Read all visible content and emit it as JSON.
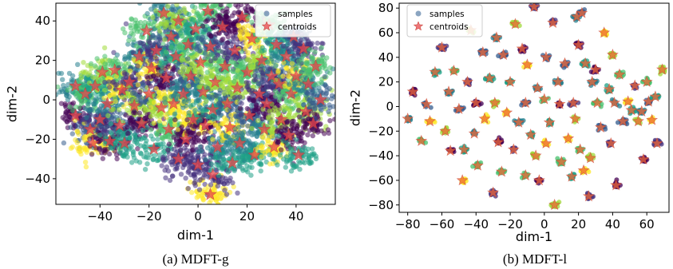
{
  "chart_data": [
    {
      "type": "scatter",
      "caption": "(a) MDFT-g",
      "xlabel": "dim-1",
      "ylabel": "dim-2",
      "xlim": [
        -58,
        56
      ],
      "ylim": [
        -53,
        49
      ],
      "xticks": [
        -40,
        -20,
        0,
        20,
        40
      ],
      "yticks": [
        -40,
        -20,
        0,
        20,
        40
      ],
      "grid": false,
      "legend_position": "top-right",
      "legend": [
        "samples",
        "centroids"
      ],
      "series": [
        {
          "name": "samples",
          "marker": "circle",
          "note": "dense t-SNE point cloud colored by cluster (viridis); clusters surround each centroid",
          "colormap": [
            "#440154",
            "#3b528b",
            "#21918c",
            "#5ec962",
            "#fde725"
          ]
        },
        {
          "name": "centroids",
          "marker": "star",
          "color": "#e8474c",
          "points": [
            [
              -50,
              7
            ],
            [
              -50,
              -8
            ],
            [
              -46,
              3
            ],
            [
              -44,
              -15
            ],
            [
              -43,
              -22
            ],
            [
              -42,
              7
            ],
            [
              -40,
              -10
            ],
            [
              -39,
              14
            ],
            [
              -37,
              -2
            ],
            [
              -36,
              -21
            ],
            [
              -34,
              15
            ],
            [
              -32,
              -13
            ],
            [
              -31,
              5
            ],
            [
              -30,
              -22
            ],
            [
              -28,
              9
            ],
            [
              -26,
              -3
            ],
            [
              -24,
              22
            ],
            [
              -23,
              -12
            ],
            [
              -21,
              35
            ],
            [
              -20,
              3
            ],
            [
              -19,
              16
            ],
            [
              -18,
              -25
            ],
            [
              -17,
              25
            ],
            [
              -15,
              -4
            ],
            [
              -14,
              44
            ],
            [
              -13,
              11
            ],
            [
              -12,
              -15
            ],
            [
              -11,
              32
            ],
            [
              -10,
              -2
            ],
            [
              -9,
              22
            ],
            [
              -8,
              -30
            ],
            [
              -8,
              40
            ],
            [
              -6,
              3
            ],
            [
              -5,
              -20
            ],
            [
              -4,
              28
            ],
            [
              -3,
              12
            ],
            [
              -2,
              -10
            ],
            [
              -1,
              36
            ],
            [
              0,
              -33
            ],
            [
              1,
              19
            ],
            [
              2,
              4
            ],
            [
              3,
              -13
            ],
            [
              4,
              45
            ],
            [
              5,
              27
            ],
            [
              5,
              -48
            ],
            [
              6,
              -5
            ],
            [
              6,
              -38
            ],
            [
              7,
              9
            ],
            [
              8,
              -24
            ],
            [
              10,
              37
            ],
            [
              11,
              17
            ],
            [
              12,
              -2
            ],
            [
              13,
              -14
            ],
            [
              14,
              -32
            ],
            [
              15,
              25
            ],
            [
              16,
              6
            ],
            [
              17,
              -22
            ],
            [
              18,
              42
            ],
            [
              20,
              14
            ],
            [
              21,
              -8
            ],
            [
              22,
              31
            ],
            [
              23,
              -28
            ],
            [
              25,
              3
            ],
            [
              26,
              20
            ],
            [
              27,
              -15
            ],
            [
              28,
              -2
            ],
            [
              29,
              38
            ],
            [
              30,
              12
            ],
            [
              31,
              -24
            ],
            [
              32,
              28
            ],
            [
              33,
              8
            ],
            [
              34,
              -10
            ],
            [
              36,
              22
            ],
            [
              37,
              -18
            ],
            [
              38,
              3
            ],
            [
              39,
              32
            ],
            [
              40,
              12
            ],
            [
              41,
              -28
            ],
            [
              43,
              26
            ],
            [
              44,
              -6
            ],
            [
              45,
              8
            ],
            [
              47,
              -12
            ],
            [
              48,
              17
            ],
            [
              50,
              0
            ]
          ]
        }
      ]
    },
    {
      "type": "scatter",
      "caption": "(b) MDFT-l",
      "xlabel": "dim-1",
      "ylabel": "dim-2",
      "xlim": [
        -85,
        73
      ],
      "ylim": [
        -86,
        84
      ],
      "xticks": [
        -80,
        -60,
        -40,
        -20,
        0,
        20,
        40,
        60
      ],
      "yticks": [
        -80,
        -60,
        -40,
        -20,
        0,
        20,
        40,
        60,
        80
      ],
      "grid": false,
      "legend_position": "top-left",
      "legend": [
        "samples",
        "centroids"
      ],
      "series": [
        {
          "name": "samples",
          "marker": "circle",
          "note": "tight small clusters colored by cluster (viridis), one per centroid",
          "colormap": [
            "#440154",
            "#3b528b",
            "#21918c",
            "#5ec962",
            "#fde725"
          ]
        },
        {
          "name": "centroids",
          "marker": "star",
          "color": "#e8474c",
          "points": [
            [
              -80,
              -10
            ],
            [
              -77,
              12
            ],
            [
              -72,
              -28
            ],
            [
              -69,
              2
            ],
            [
              -67,
              -12
            ],
            [
              -64,
              28
            ],
            [
              -60,
              48
            ],
            [
              -58,
              -20
            ],
            [
              -56,
              12
            ],
            [
              -55,
              -36
            ],
            [
              -53,
              29
            ],
            [
              -50,
              -2
            ],
            [
              -48,
              -60
            ],
            [
              -47,
              -35
            ],
            [
              -45,
              20
            ],
            [
              -43,
              62
            ],
            [
              -41,
              -22
            ],
            [
              -40,
              3
            ],
            [
              -39,
              -48
            ],
            [
              -36,
              44
            ],
            [
              -35,
              -10
            ],
            [
              -32,
              23
            ],
            [
              -30,
              -70
            ],
            [
              -29,
              3
            ],
            [
              -28,
              56
            ],
            [
              -27,
              -29
            ],
            [
              -25,
              -53
            ],
            [
              -24,
              42
            ],
            [
              -22,
              -5
            ],
            [
              -20,
              20
            ],
            [
              -18,
              -35
            ],
            [
              -17,
              67
            ],
            [
              -15,
              -13
            ],
            [
              -13,
              47
            ],
            [
              -11,
              -56
            ],
            [
              -11,
              3
            ],
            [
              -10,
              34
            ],
            [
              -8,
              -23
            ],
            [
              -6,
              81
            ],
            [
              -5,
              -40
            ],
            [
              -4,
              15
            ],
            [
              -3,
              -60
            ],
            [
              0,
              6
            ],
            [
              1,
              40
            ],
            [
              1,
              -30
            ],
            [
              3,
              -13
            ],
            [
              5,
              68
            ],
            [
              6,
              -80
            ],
            [
              8,
              20
            ],
            [
              9,
              2
            ],
            [
              10,
              -45
            ],
            [
              12,
              35
            ],
            [
              14,
              -26
            ],
            [
              16,
              -57
            ],
            [
              17,
              3
            ],
            [
              18,
              -10
            ],
            [
              19,
              73
            ],
            [
              20,
              50
            ],
            [
              21,
              -35
            ],
            [
              22,
              76
            ],
            [
              23,
              -52
            ],
            [
              24,
              35
            ],
            [
              26,
              -73
            ],
            [
              27,
              -42
            ],
            [
              28,
              20
            ],
            [
              30,
              30
            ],
            [
              31,
              3
            ],
            [
              33,
              -17
            ],
            [
              35,
              60
            ],
            [
              38,
              14
            ],
            [
              39,
              -30
            ],
            [
              40,
              42
            ],
            [
              41,
              3
            ],
            [
              42,
              -64
            ],
            [
              44,
              26
            ],
            [
              46,
              -12
            ],
            [
              49,
              4
            ],
            [
              51,
              -3
            ],
            [
              53,
              17
            ],
            [
              55,
              -12
            ],
            [
              57,
              -4
            ],
            [
              58,
              -43
            ],
            [
              60,
              20
            ],
            [
              61,
              4
            ],
            [
              63,
              -11
            ],
            [
              65,
              8
            ],
            [
              66,
              -30
            ],
            [
              69,
              30
            ]
          ]
        }
      ]
    }
  ]
}
